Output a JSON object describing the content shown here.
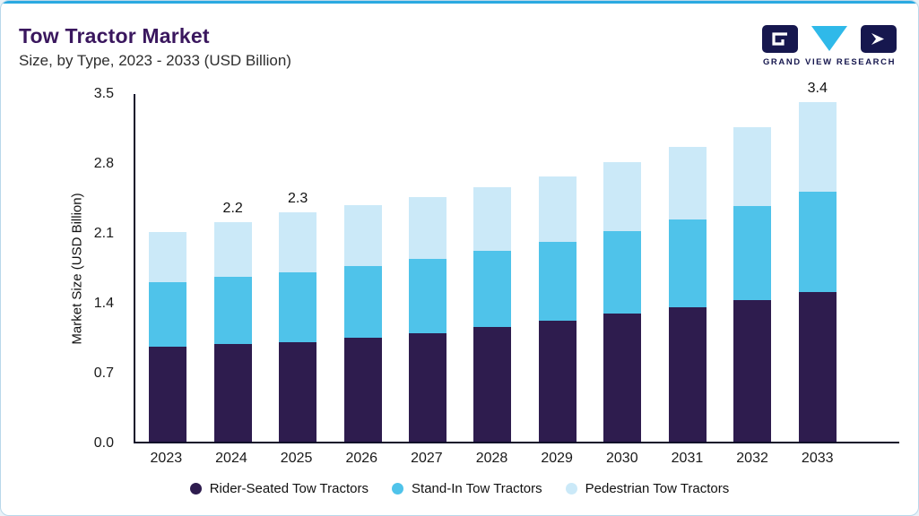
{
  "header": {
    "title": "Tow Tractor Market",
    "subtitle": "Size, by Type, 2023 - 2033 (USD Billion)",
    "brand": "GRAND VIEW RESEARCH"
  },
  "colors": {
    "accent_bar": "#2aa9e1",
    "title_purple": "#3a175e",
    "brand_navy": "#16174e",
    "card_border": "#b9d8ea",
    "axis": "#10102a"
  },
  "chart_data": {
    "type": "bar",
    "stacked": true,
    "title": "Tow Tractor Market",
    "subtitle": "Size, by Type, 2023 - 2033 (USD Billion)",
    "xlabel": "",
    "ylabel": "Market Size (USD Billion)",
    "ylim": [
      0,
      3.5
    ],
    "yticks": [
      0.0,
      0.7,
      1.4,
      2.1,
      2.8,
      3.5
    ],
    "grid": false,
    "legend_position": "bottom",
    "categories": [
      "2023",
      "2024",
      "2025",
      "2026",
      "2027",
      "2028",
      "2029",
      "2030",
      "2031",
      "2032",
      "2033"
    ],
    "series": [
      {
        "name": "Rider-Seated Tow Tractors",
        "color": "#2e1c4e",
        "values": [
          0.95,
          0.98,
          1.0,
          1.04,
          1.09,
          1.15,
          1.21,
          1.28,
          1.35,
          1.42,
          1.5
        ]
      },
      {
        "name": "Stand-In Tow Tractors",
        "color": "#4fc3ea",
        "values": [
          0.65,
          0.67,
          0.7,
          0.72,
          0.74,
          0.76,
          0.79,
          0.83,
          0.88,
          0.94,
          1.0
        ]
      },
      {
        "name": "Pedestrian Tow Tractors",
        "color": "#cbe9f8",
        "values": [
          0.5,
          0.55,
          0.6,
          0.61,
          0.62,
          0.64,
          0.66,
          0.69,
          0.72,
          0.79,
          0.9
        ]
      }
    ],
    "totals": [
      2.1,
      2.2,
      2.3,
      2.37,
      2.45,
      2.55,
      2.66,
      2.8,
      2.95,
      3.15,
      3.4
    ],
    "bar_labels": [
      "",
      "2.2",
      "2.3",
      "",
      "",
      "",
      "",
      "",
      "",
      "",
      "3.4"
    ]
  }
}
